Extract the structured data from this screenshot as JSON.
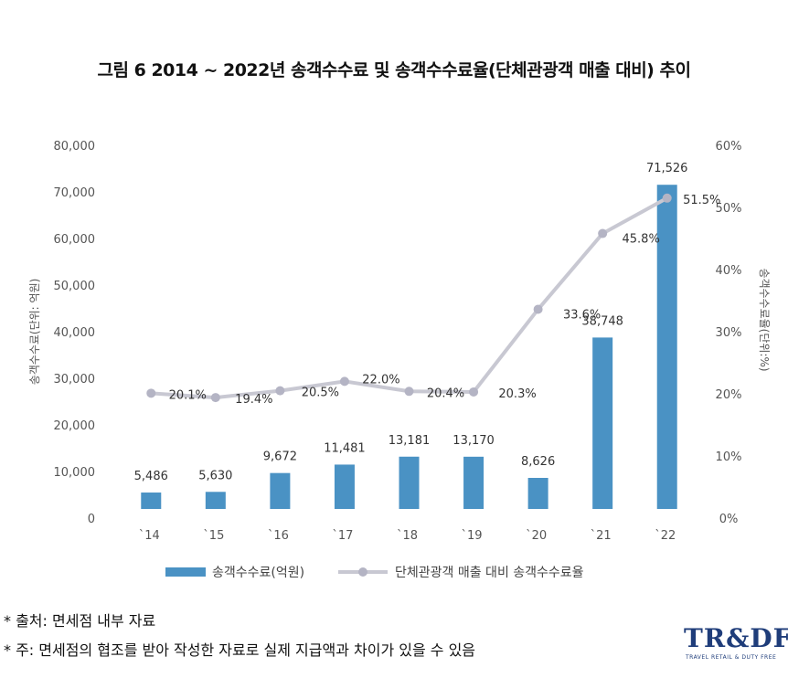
{
  "title": "그림 6 2014 ~ 2022년 송객수수료 및 송객수수료율(단체관광객 매출 대비) 추이",
  "chart_data": {
    "type": "bar",
    "categories": [
      "`14",
      "`15",
      "`16",
      "`17",
      "`18",
      "`19",
      "`20",
      "`21",
      "`22"
    ],
    "series": [
      {
        "name": "송객수수료(억원)",
        "type": "bar",
        "axis": "left",
        "values": [
          5486,
          5630,
          9672,
          11481,
          13181,
          13170,
          8626,
          38748,
          71526
        ],
        "labels": [
          "5,486",
          "5,630",
          "9,672",
          "11,481",
          "13,181",
          "13,170",
          "8,626",
          "38,748",
          "71,526"
        ],
        "color": "#4a92c4"
      },
      {
        "name": "단체관광객 매출 대비 송객수수료율",
        "type": "line",
        "axis": "right",
        "values": [
          20.1,
          19.4,
          20.5,
          22.0,
          20.4,
          20.3,
          33.6,
          45.8,
          51.5
        ],
        "labels": [
          "20.1%",
          "19.4%",
          "20.5%",
          "22.0%",
          "20.4%",
          "20.3%",
          "33.6%",
          "45.8%",
          "51.5%"
        ],
        "color": "#c8c8d2"
      }
    ],
    "ylabel_left": "송객수수료(단위: 억원)",
    "ylabel_right": "송객수수료율(단위:%)",
    "ylim_left": [
      0,
      80000
    ],
    "ylim_right": [
      0,
      60
    ],
    "yticks_left": [
      "0",
      "10,000",
      "20,000",
      "30,000",
      "40,000",
      "50,000",
      "60,000",
      "70,000",
      "80,000"
    ],
    "yticks_right": [
      "0%",
      "10%",
      "20%",
      "30%",
      "40%",
      "50%",
      "60%"
    ],
    "grid": false,
    "legend_position": "bottom"
  },
  "notes": {
    "source": "* 출처: 면세점 내부 자료",
    "remark": "* 주: 면세점의 협조를 받아 작성한 자료로 실제 지급액과 차이가 있을 수 있음"
  },
  "logo": {
    "text": "TR&DF",
    "subtext": "TRAVEL RETAIL & DUTY FREE"
  },
  "colors": {
    "bar": "#4a92c4",
    "line": "#c8c8d2",
    "marker": "#b4b4c4",
    "text": "#444444",
    "logo": "#1f3d7a"
  }
}
